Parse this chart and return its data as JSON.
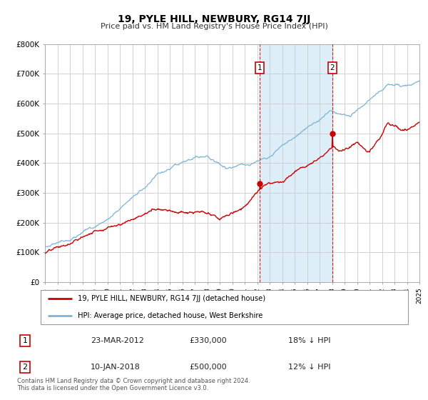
{
  "title": "19, PYLE HILL, NEWBURY, RG14 7JJ",
  "subtitle": "Price paid vs. HM Land Registry's House Price Index (HPI)",
  "background_color": "#ffffff",
  "grid_color": "#cccccc",
  "hpi_color": "#7ab4d8",
  "price_color": "#cc0000",
  "span_color": "#deeef8",
  "sale1_date_num": 2012.22,
  "sale1_price": 330000,
  "sale1_label": "1",
  "sale2_date_num": 2018.03,
  "sale2_price": 500000,
  "sale2_label": "2",
  "xmin": 1995,
  "xmax": 2025,
  "ymin": 0,
  "ymax": 800000,
  "yticks": [
    0,
    100000,
    200000,
    300000,
    400000,
    500000,
    600000,
    700000,
    800000
  ],
  "ytick_labels": [
    "£0",
    "£100K",
    "£200K",
    "£300K",
    "£400K",
    "£500K",
    "£600K",
    "£700K",
    "£800K"
  ],
  "legend_line1": "19, PYLE HILL, NEWBURY, RG14 7JJ (detached house)",
  "legend_line2": "HPI: Average price, detached house, West Berkshire",
  "table_row1_num": "1",
  "table_row1_date": "23-MAR-2012",
  "table_row1_price": "£330,000",
  "table_row1_hpi": "18% ↓ HPI",
  "table_row2_num": "2",
  "table_row2_date": "10-JAN-2018",
  "table_row2_price": "£500,000",
  "table_row2_hpi": "12% ↓ HPI",
  "footnote1": "Contains HM Land Registry data © Crown copyright and database right 2024.",
  "footnote2": "This data is licensed under the Open Government Licence v3.0."
}
